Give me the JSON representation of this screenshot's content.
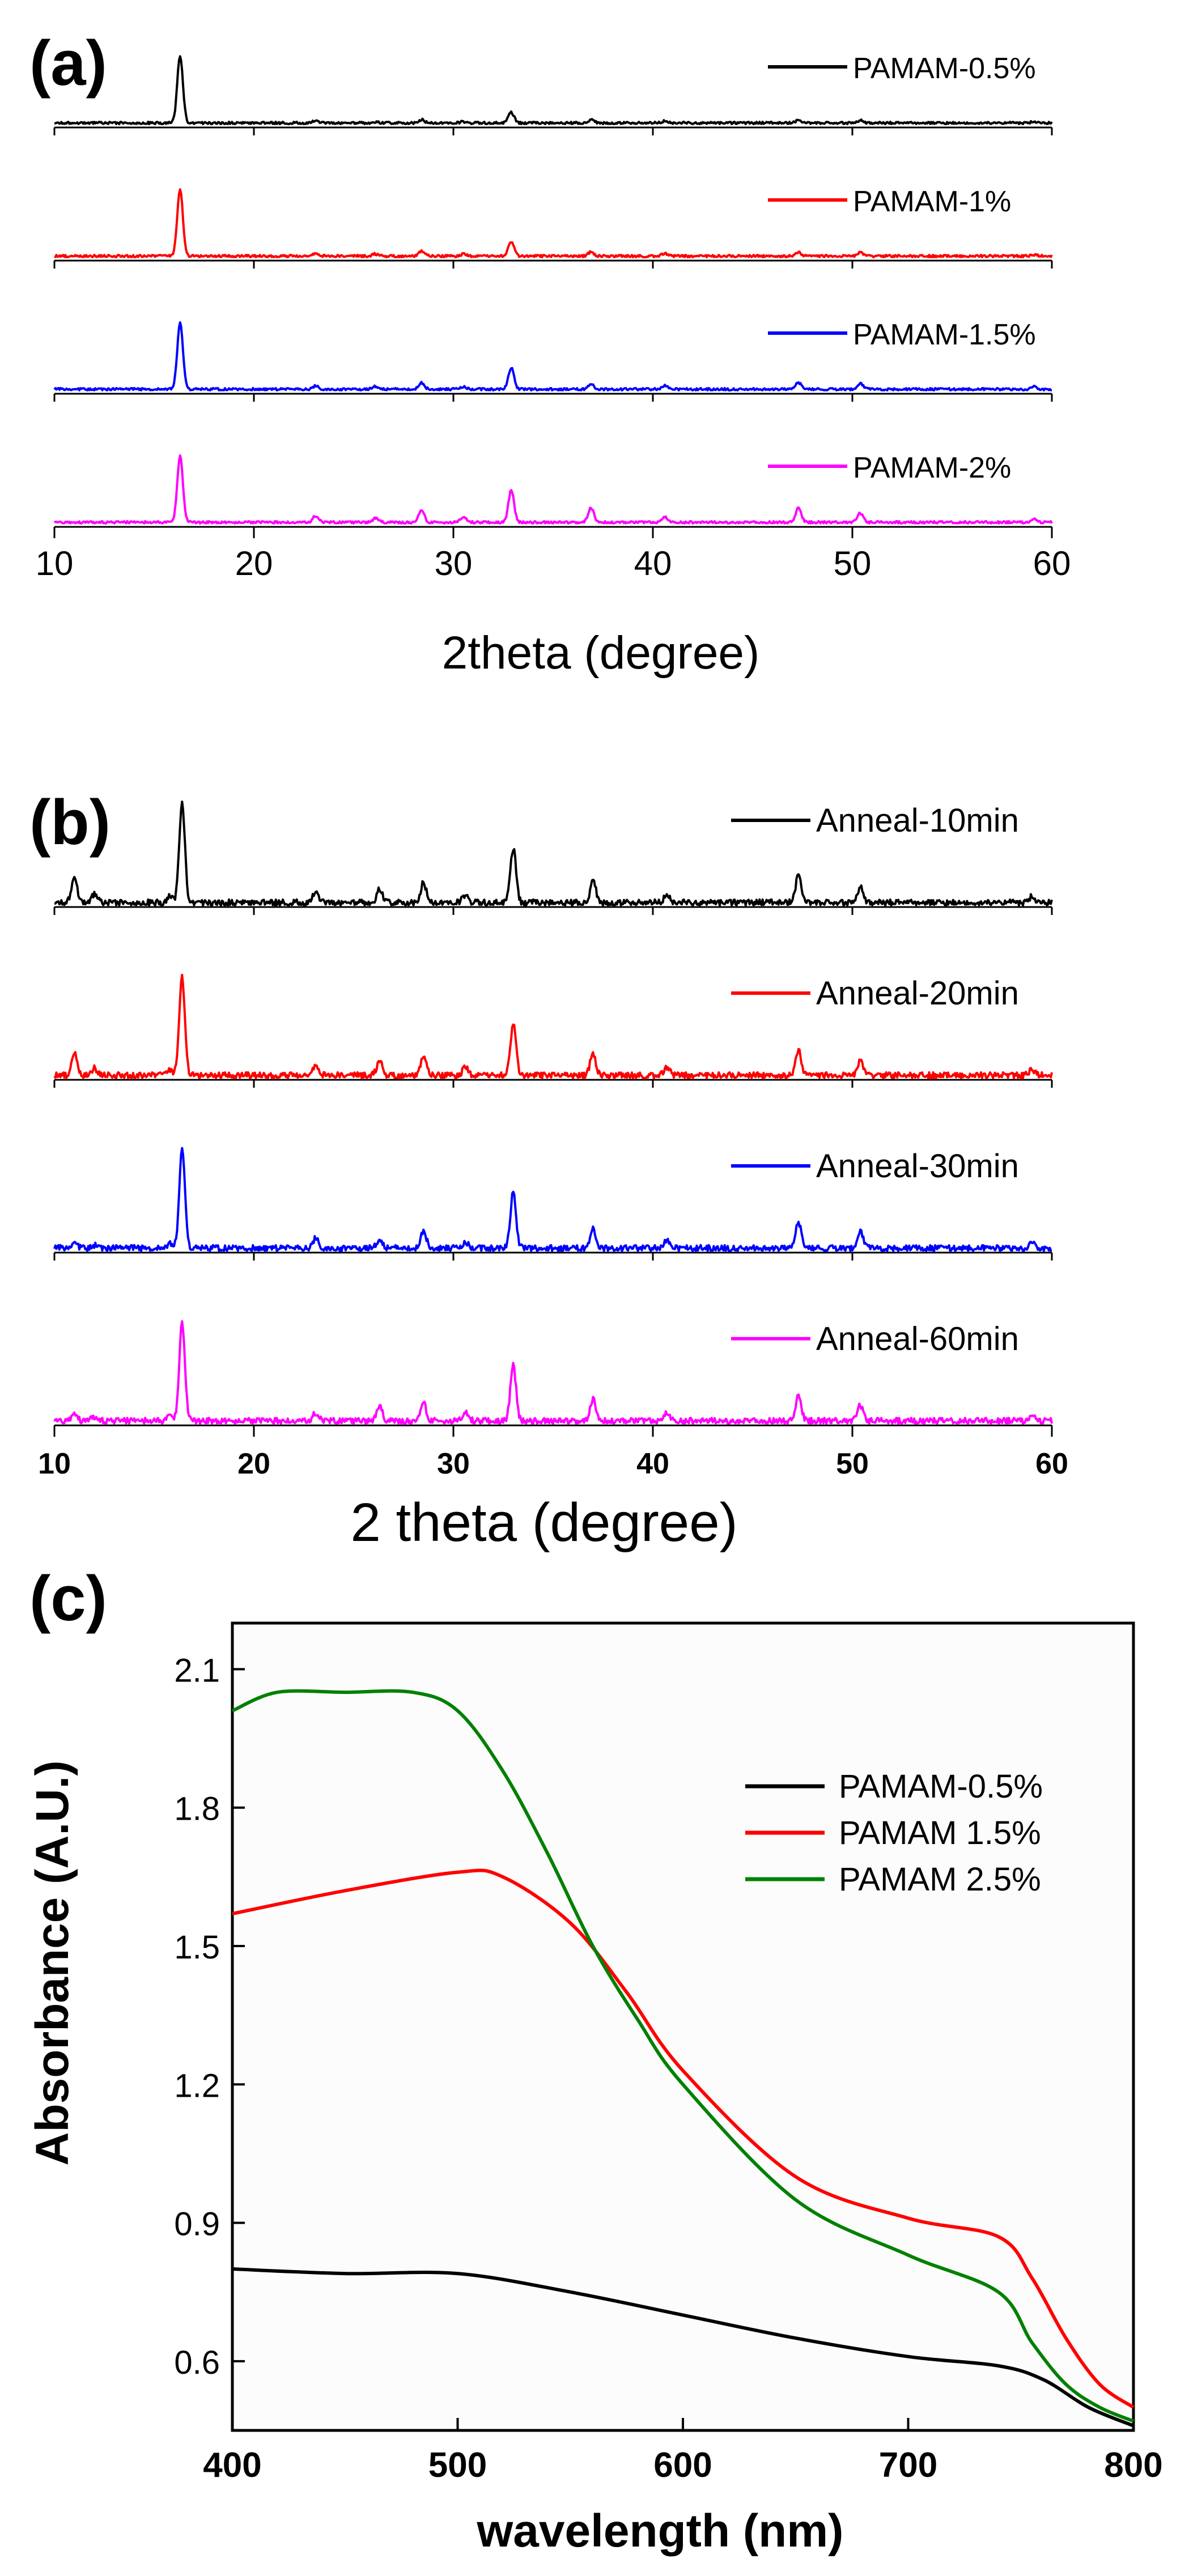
{
  "figure": {
    "panels": [
      {
        "id": "a",
        "label": "(a)",
        "xlabel": "2theta (degree)"
      },
      {
        "id": "b",
        "label": "(b)",
        "xlabel": "2 theta (degree)"
      },
      {
        "id": "c",
        "label": "(c)",
        "xlabel": "wavelength (nm)",
        "ylabel": "Absorbance (A.U.)"
      }
    ]
  },
  "chart_data": [
    {
      "type": "line",
      "panel": "a",
      "title": "",
      "xlabel": "2theta (degree)",
      "ylabel": "",
      "xlim": [
        10,
        60
      ],
      "xticks": [
        10,
        20,
        30,
        40,
        50,
        60
      ],
      "stacked": true,
      "y_axis_shown": false,
      "legend_position": "right of each trace",
      "peaks_2theta": [
        16.3,
        23.1,
        26.1,
        28.4,
        30.5,
        32.9,
        36.9,
        40.6,
        47.3,
        50.4,
        59.1
      ],
      "series": [
        {
          "name": "PAMAM-0.5%",
          "color": "#000000",
          "intensity": [
            1.0,
            0.03,
            0.02,
            0.05,
            0.02,
            0.16,
            0.05,
            0.03,
            0.04,
            0.04,
            0.02
          ]
        },
        {
          "name": "PAMAM-1%",
          "color": "#ff0000",
          "intensity": [
            1.0,
            0.04,
            0.03,
            0.07,
            0.03,
            0.22,
            0.06,
            0.04,
            0.06,
            0.05,
            0.02
          ]
        },
        {
          "name": "PAMAM-1.5%",
          "color": "#0000ff",
          "intensity": [
            1.0,
            0.05,
            0.04,
            0.1,
            0.04,
            0.32,
            0.08,
            0.05,
            0.1,
            0.08,
            0.04
          ]
        },
        {
          "name": "PAMAM-2%",
          "color": "#ff00ff",
          "intensity": [
            1.0,
            0.1,
            0.06,
            0.18,
            0.08,
            0.48,
            0.22,
            0.08,
            0.22,
            0.14,
            0.05
          ]
        }
      ]
    },
    {
      "type": "line",
      "panel": "b",
      "title": "",
      "xlabel": "2 theta (degree)",
      "ylabel": "",
      "xlim": [
        10,
        60
      ],
      "xticks": [
        10,
        20,
        30,
        40,
        50,
        60
      ],
      "stacked": true,
      "y_axis_shown": false,
      "legend_position": "right of each trace",
      "peaks_2theta": [
        11.0,
        12.0,
        15.8,
        16.4,
        23.1,
        26.3,
        28.5,
        30.6,
        33.0,
        37.0,
        40.7,
        47.3,
        50.4,
        59.0
      ],
      "series": [
        {
          "name": "Anneal-10min",
          "color": "#000000",
          "intensity": [
            0.26,
            0.08,
            0.06,
            1.0,
            0.1,
            0.14,
            0.2,
            0.08,
            0.55,
            0.22,
            0.08,
            0.28,
            0.16,
            0.06
          ]
        },
        {
          "name": "Anneal-20min",
          "color": "#ff0000",
          "intensity": [
            0.22,
            0.07,
            0.05,
            1.0,
            0.1,
            0.14,
            0.18,
            0.08,
            0.52,
            0.22,
            0.08,
            0.26,
            0.14,
            0.06
          ]
        },
        {
          "name": "Anneal-30min",
          "color": "#0000ff",
          "intensity": [
            0.06,
            0.03,
            0.04,
            1.0,
            0.1,
            0.08,
            0.18,
            0.06,
            0.56,
            0.2,
            0.07,
            0.26,
            0.16,
            0.06
          ]
        },
        {
          "name": "Anneal-60min",
          "color": "#ff00ff",
          "intensity": [
            0.08,
            0.04,
            0.05,
            1.0,
            0.08,
            0.14,
            0.18,
            0.08,
            0.56,
            0.22,
            0.08,
            0.26,
            0.16,
            0.06
          ]
        }
      ]
    },
    {
      "type": "line",
      "panel": "c",
      "title": "",
      "xlabel": "wavelength (nm)",
      "ylabel": "Absorbance (A.U.)",
      "xlim": [
        400,
        800
      ],
      "ylim": [
        0.45,
        2.2
      ],
      "xticks": [
        400,
        500,
        600,
        700,
        800
      ],
      "yticks": [
        0.6,
        0.9,
        1.2,
        1.5,
        1.8,
        2.1
      ],
      "yticklabels": [
        "0.6",
        "0.9",
        "1.2",
        "1.5",
        "1.8",
        "2.1"
      ],
      "legend_position": "top-right",
      "series": [
        {
          "name": "PAMAM-0.5%",
          "color": "#000000",
          "x": [
            400,
            450,
            500,
            550,
            600,
            650,
            700,
            740,
            760,
            780,
            800
          ],
          "y": [
            0.8,
            0.79,
            0.79,
            0.75,
            0.7,
            0.65,
            0.61,
            0.59,
            0.56,
            0.5,
            0.46
          ]
        },
        {
          "name": "PAMAM 1.5%",
          "color": "#ff0000",
          "x": [
            400,
            450,
            500,
            520,
            550,
            575,
            600,
            650,
            700,
            740,
            755,
            770,
            785,
            800
          ],
          "y": [
            1.57,
            1.62,
            1.66,
            1.65,
            1.55,
            1.4,
            1.23,
            1.0,
            0.91,
            0.87,
            0.78,
            0.65,
            0.55,
            0.5
          ]
        },
        {
          "name": "PAMAM 2.5%",
          "color": "#008000",
          "x": [
            400,
            420,
            450,
            480,
            500,
            520,
            540,
            560,
            580,
            600,
            650,
            700,
            740,
            755,
            770,
            785,
            800
          ],
          "y": [
            2.01,
            2.05,
            2.05,
            2.05,
            2.01,
            1.88,
            1.7,
            1.5,
            1.34,
            1.2,
            0.95,
            0.83,
            0.75,
            0.64,
            0.55,
            0.5,
            0.47
          ]
        }
      ]
    }
  ]
}
